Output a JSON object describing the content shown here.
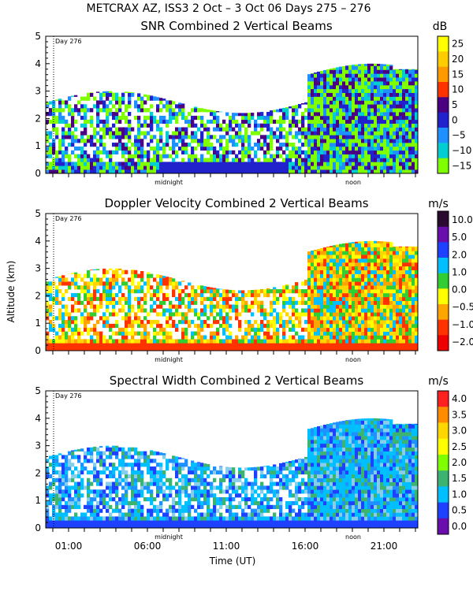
{
  "figure": {
    "header": "METCRAX AZ, ISS3    2 Oct –   3 Oct 06 Days 275 – 276",
    "ylabel": "Altitude (km)",
    "xlabel": "Time (UT)",
    "day_marker": "Day 276",
    "midnight_label": "midnight",
    "noon_label": "noon"
  },
  "chart_data": [
    {
      "type": "heatmap",
      "title": "SNR Combined 2 Vertical Beams",
      "unit": "dB",
      "ylim": [
        0,
        5
      ],
      "yticks": [
        "0",
        "1",
        "2",
        "3",
        "4",
        "5"
      ],
      "xticks": [],
      "colorbar": {
        "labels": [
          "25",
          "20",
          "15",
          "10",
          "5",
          "0",
          "−5",
          "−10",
          "−15"
        ],
        "colors": [
          "#ffff00",
          "#ffcc00",
          "#ff9900",
          "#ff3300",
          "#4b0082",
          "#2222cc",
          "#1e90ff",
          "#00ced1",
          "#7fff00"
        ]
      }
    },
    {
      "type": "heatmap",
      "title": "Doppler Velocity Combined 2 Vertical Beams",
      "unit": "m/s",
      "ylim": [
        0,
        5
      ],
      "yticks": [
        "0",
        "1",
        "2",
        "3",
        "4",
        "5"
      ],
      "xticks": [],
      "colorbar": {
        "labels": [
          "10.0",
          "5.0",
          "2.0",
          "1.0",
          "0.0",
          "−0.5",
          "−1.0",
          "−2.0"
        ],
        "colors": [
          "#2a0a2e",
          "#6a0dad",
          "#1e40ff",
          "#00bfff",
          "#32cd32",
          "#ffff00",
          "#ffa500",
          "#ff3300",
          "#ee0000"
        ]
      }
    },
    {
      "type": "heatmap",
      "title": "Spectral Width Combined 2 Vertical Beams",
      "unit": "m/s",
      "ylim": [
        0,
        5
      ],
      "yticks": [
        "0",
        "1",
        "2",
        "3",
        "4",
        "5"
      ],
      "xticks": [
        "01:00",
        "06:00",
        "11:00",
        "16:00",
        "21:00"
      ],
      "colorbar": {
        "labels": [
          "4.0",
          "3.5",
          "3.0",
          "2.5",
          "2.0",
          "1.5",
          "1.0",
          "0.5",
          "0.0"
        ],
        "colors": [
          "#ff2020",
          "#ff8c00",
          "#ffd700",
          "#ffff00",
          "#7fff00",
          "#3cb371",
          "#00bfff",
          "#1e40ff",
          "#6a0dad"
        ]
      }
    }
  ]
}
